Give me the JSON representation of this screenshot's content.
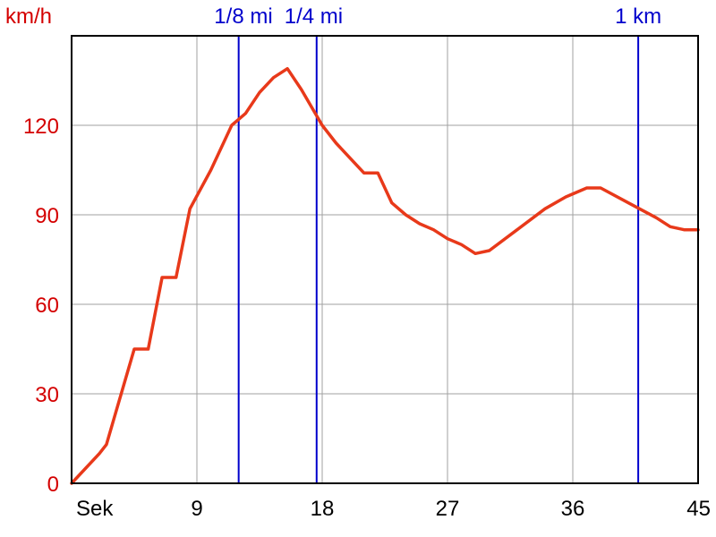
{
  "chart_data": {
    "type": "line",
    "ylabel": "km/h",
    "xlabel": "Sek",
    "xlim": [
      0,
      45
    ],
    "ylim": [
      0,
      150
    ],
    "grid": true,
    "x_ticks": [
      9,
      18,
      27,
      36,
      45
    ],
    "y_ticks": [
      0,
      30,
      60,
      90,
      120
    ],
    "series": [
      {
        "x": [
          0,
          2,
          2.5,
          4.5,
          5.5,
          6.5,
          7.5,
          8.5,
          10,
          11.5,
          12.5,
          13.5,
          14.5,
          15.5,
          16.5,
          18,
          19,
          21,
          22,
          23,
          24,
          25,
          26,
          27,
          28,
          29,
          30,
          32,
          34,
          35.5,
          37,
          38,
          40,
          42,
          43,
          44,
          45
        ],
        "y": [
          0,
          10,
          13,
          45,
          45,
          69,
          69,
          92,
          105,
          120,
          124,
          131,
          136,
          139,
          132,
          120,
          114,
          104,
          104,
          94,
          90,
          87,
          85,
          82,
          80,
          77,
          78,
          85,
          92,
          96,
          99,
          99,
          94,
          89,
          86,
          85,
          85
        ],
        "color": "#e8391a"
      }
    ],
    "markers": [
      {
        "label": "1/8 mi",
        "x": 12.0,
        "color": "#0000cc"
      },
      {
        "label": "1/4 mi",
        "x": 17.6,
        "color": "#0000cc"
      },
      {
        "label": "1 km",
        "x": 40.7,
        "color": "#0000cc"
      }
    ]
  }
}
